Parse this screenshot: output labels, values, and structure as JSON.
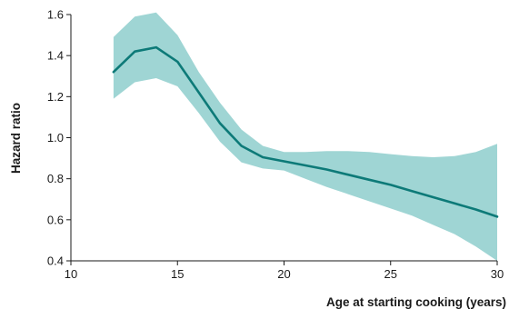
{
  "chart_data": {
    "type": "line",
    "title": "",
    "xlabel": "Age at starting cooking (years)",
    "ylabel": "Hazard ratio",
    "xlim": [
      10,
      30
    ],
    "ylim": [
      0.4,
      1.6
    ],
    "xticks": [
      "10",
      "15",
      "20",
      "25",
      "30"
    ],
    "yticks": [
      "0.4",
      "0.6",
      "0.8",
      "1.0",
      "1.2",
      "1.4",
      "1.6"
    ],
    "grid": false,
    "legend": "none",
    "series": [
      {
        "x": [
          12,
          13,
          14,
          15,
          16,
          17,
          18,
          19,
          20,
          21,
          22,
          23,
          24,
          25,
          26,
          27,
          28,
          29,
          30
        ],
        "y": [
          1.32,
          1.42,
          1.44,
          1.37,
          1.22,
          1.07,
          0.96,
          0.905,
          0.885,
          0.865,
          0.845,
          0.82,
          0.795,
          0.77,
          0.74,
          0.71,
          0.68,
          0.65,
          0.615
        ],
        "lower": [
          1.19,
          1.27,
          1.29,
          1.25,
          1.12,
          0.98,
          0.88,
          0.85,
          0.84,
          0.8,
          0.76,
          0.725,
          0.69,
          0.655,
          0.62,
          0.575,
          0.53,
          0.47,
          0.4
        ],
        "upper": [
          1.49,
          1.59,
          1.61,
          1.5,
          1.32,
          1.17,
          1.04,
          0.96,
          0.93,
          0.93,
          0.935,
          0.935,
          0.93,
          0.92,
          0.91,
          0.905,
          0.91,
          0.93,
          0.97
        ],
        "line_color": "#0d7a78",
        "band_color": "#9fd5d4"
      }
    ]
  }
}
